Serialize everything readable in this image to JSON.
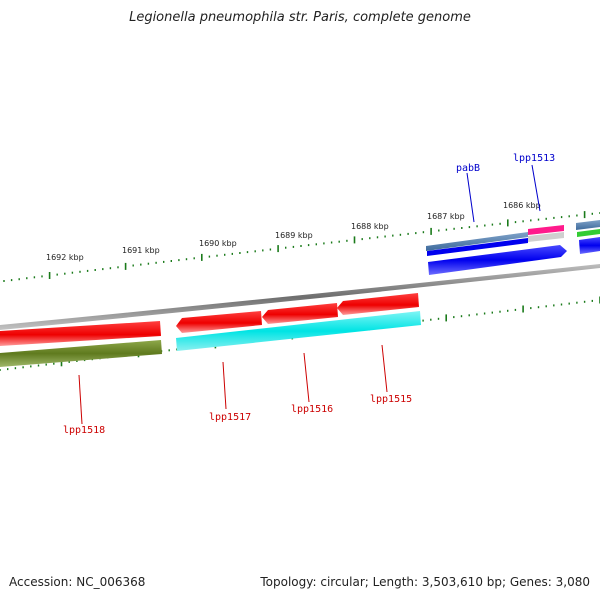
{
  "title": "Legionella pneumophila str. Paris, complete genome",
  "footer": {
    "accession": "Accession: NC_006368",
    "summary": "Topology: circular; Length: 3,503,610 bp; Genes: 3,080"
  },
  "scale": {
    "unit": "kbp",
    "labels": [
      "1692 kbp",
      "1691 kbp",
      "1690 kbp",
      "1689 kbp",
      "1688 kbp",
      "1687 kbp",
      "1686 kbp"
    ]
  },
  "genes": {
    "forward": [
      "pabB",
      "lpp1513"
    ],
    "reverse": [
      "lpp1518",
      "lpp1517",
      "lpp1516",
      "lpp1515"
    ]
  },
  "colors": {
    "forward_label": "#0000cc",
    "reverse_label": "#cc0000",
    "tick": "#1a7a1a",
    "backbone": "#8a8a8a"
  }
}
